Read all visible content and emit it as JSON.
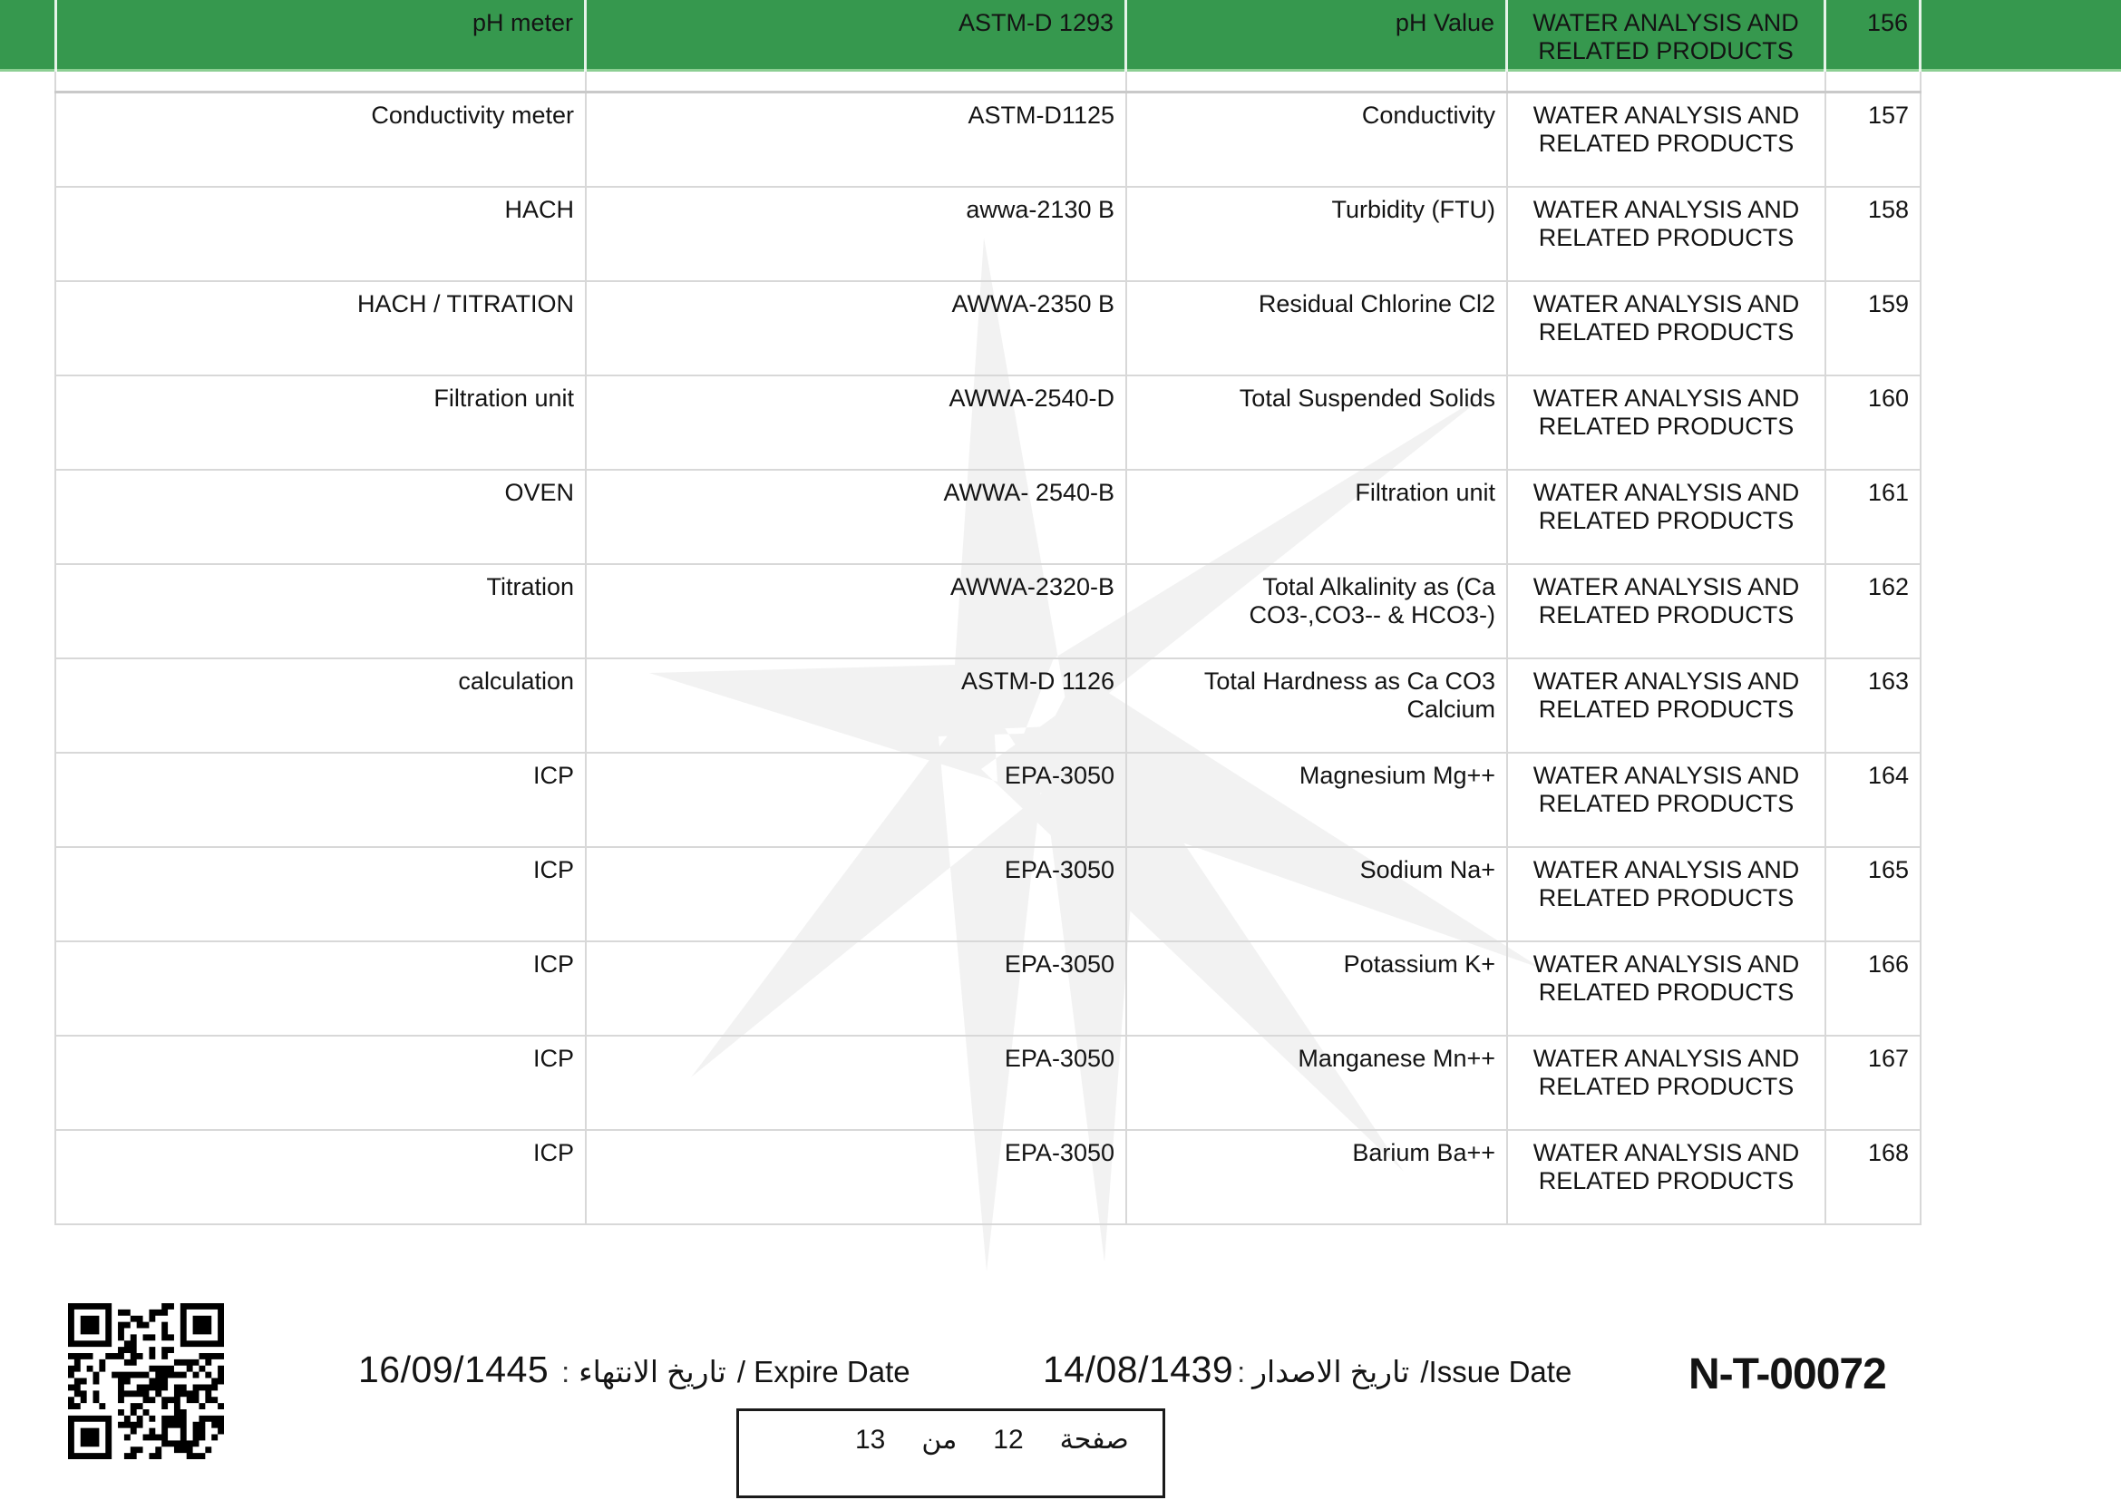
{
  "table": {
    "category": [
      "WATER ANALYSIS AND",
      "RELATED PRODUCTS"
    ],
    "header_row": {
      "equipment": "pH meter",
      "standard": "ASTM-D 1293",
      "parameter": [
        "pH Value"
      ],
      "number": "156"
    },
    "rows": [
      {
        "equipment": "Conductivity meter",
        "standard": "ASTM-D1125",
        "parameter": [
          "Conductivity"
        ],
        "number": "157"
      },
      {
        "equipment": "HACH",
        "standard": "awwa-2130 B",
        "parameter": [
          "Turbidity (FTU)"
        ],
        "number": "158"
      },
      {
        "equipment": "HACH / TITRATION",
        "standard": "AWWA-2350 B",
        "parameter": [
          "Residual Chlorine Cl2"
        ],
        "number": "159"
      },
      {
        "equipment": "Filtration unit",
        "standard": "AWWA-2540-D",
        "parameter": [
          "Total Suspended Solids"
        ],
        "number": "160"
      },
      {
        "equipment": "OVEN",
        "standard": "AWWA- 2540-B",
        "parameter": [
          "Filtration unit"
        ],
        "number": "161"
      },
      {
        "equipment": "Titration",
        "standard": "AWWA-2320-B",
        "parameter": [
          "Total Alkalinity as (Ca",
          "CO3-,CO3-- & HCO3-)"
        ],
        "number": "162"
      },
      {
        "equipment": "calculation",
        "standard": "ASTM-D 1126",
        "parameter": [
          "Total Hardness as Ca CO3",
          "Calcium"
        ],
        "number": "163"
      },
      {
        "equipment": "ICP",
        "standard": "EPA-3050",
        "parameter": [
          "Magnesium Mg++"
        ],
        "number": "164"
      },
      {
        "equipment": "ICP",
        "standard": "EPA-3050",
        "parameter": [
          "Sodium Na+"
        ],
        "number": "165"
      },
      {
        "equipment": "ICP",
        "standard": "EPA-3050",
        "parameter": [
          "Potassium K+"
        ],
        "number": "166"
      },
      {
        "equipment": "ICP",
        "standard": "EPA-3050",
        "parameter": [
          "Manganese Mn++"
        ],
        "number": "167"
      },
      {
        "equipment": "ICP",
        "standard": "EPA-3050",
        "parameter": [
          "Barium Ba++"
        ],
        "number": "168"
      }
    ]
  },
  "footer": {
    "expire_date": {
      "value": "16/09/1445",
      "colon": ":",
      "label_ar": "تاريخ الانتهاء",
      "label_en": "/ Expire Date"
    },
    "issue_date": {
      "value": "14/08/1439",
      "colon": ":",
      "label_ar": "تاريخ الاصدار",
      "label_en": "/Issue Date"
    },
    "certificate_number": "N-T-00072",
    "page_indicator": {
      "total": "13",
      "of_ar": "من",
      "current": "12",
      "page_ar": "صفحة"
    }
  },
  "colors": {
    "highlight_green": "#36984e",
    "highlight_green_edge": "#8ccf93",
    "row_border": "#d8d8d8",
    "text": "#141414"
  },
  "icons": {
    "qr_code": "qr-code",
    "watermark": "starburst-watermark"
  }
}
